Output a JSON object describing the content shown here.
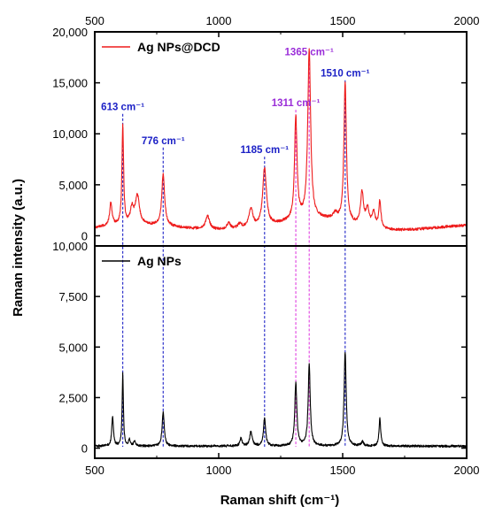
{
  "chart_data": {
    "type": "line",
    "xlabel": "Raman shift (cm⁻¹)",
    "ylabel": "Raman intensity (a.u.)",
    "xlim": [
      500,
      2000
    ],
    "x_ticks": [
      "500",
      "1000",
      "1500",
      "2000"
    ],
    "top_x_ticks": [
      "500",
      "1000",
      "1500",
      "2000"
    ],
    "grid": false,
    "panels": [
      {
        "name": "Ag NPs@DCD",
        "legend_label": "Ag NPs@DCD",
        "legend_position": "top-left",
        "color": "#ee1c1c",
        "ylim": [
          -1000,
          20000
        ],
        "y_ticks": [
          0,
          5000,
          10000,
          15000,
          20000
        ],
        "y_tick_labels": [
          "0",
          "5,000",
          "10,000",
          "15,000",
          "20,000"
        ],
        "baseline": 600,
        "peaks": [
          {
            "x": 565,
            "h": 2200,
            "w": 6
          },
          {
            "x": 613,
            "h": 9800,
            "w": 4
          },
          {
            "x": 650,
            "h": 1500,
            "w": 8
          },
          {
            "x": 672,
            "h": 2800,
            "w": 10
          },
          {
            "x": 776,
            "h": 5000,
            "w": 7
          },
          {
            "x": 955,
            "h": 1300,
            "w": 10
          },
          {
            "x": 1040,
            "h": 600,
            "w": 10
          },
          {
            "x": 1085,
            "h": 500,
            "w": 10
          },
          {
            "x": 1130,
            "h": 1900,
            "w": 10
          },
          {
            "x": 1185,
            "h": 5700,
            "w": 9
          },
          {
            "x": 1311,
            "h": 10100,
            "w": 6
          },
          {
            "x": 1365,
            "h": 16500,
            "w": 7
          },
          {
            "x": 1470,
            "h": 600,
            "w": 10
          },
          {
            "x": 1510,
            "h": 13600,
            "w": 6
          },
          {
            "x": 1578,
            "h": 3200,
            "w": 7
          },
          {
            "x": 1600,
            "h": 1700,
            "w": 8
          },
          {
            "x": 1625,
            "h": 1400,
            "w": 8
          },
          {
            "x": 1650,
            "h": 2600,
            "w": 5
          }
        ],
        "annotations": [
          {
            "label": "613 cm⁻¹",
            "x": 613,
            "y": 12300,
            "color": "#1c21c6"
          },
          {
            "label": "776 cm⁻¹",
            "x": 776,
            "y": 9000,
            "color": "#1c21c6"
          },
          {
            "label": "1185 cm⁻¹",
            "x": 1185,
            "y": 8100,
            "color": "#1c21c6"
          },
          {
            "label": "1311 cm⁻¹",
            "x": 1311,
            "y": 12700,
            "color": "#9a2dd8"
          },
          {
            "label": "1365 cm⁻¹",
            "x": 1365,
            "y": 17700,
            "color": "#9a2dd8"
          },
          {
            "label": "1510 cm⁻¹",
            "x": 1510,
            "y": 15600,
            "color": "#1c21c6"
          }
        ]
      },
      {
        "name": "Ag NPs",
        "legend_label": "Ag NPs",
        "legend_position": "top-left",
        "color": "#000000",
        "ylim": [
          -500,
          10000
        ],
        "y_ticks": [
          0,
          2500,
          5000,
          7500,
          10000
        ],
        "y_tick_labels": [
          "0",
          "2,500",
          "5,000",
          "7,500",
          "10,000"
        ],
        "baseline": 100,
        "peaks": [
          {
            "x": 572,
            "h": 1450,
            "w": 4
          },
          {
            "x": 613,
            "h": 3600,
            "w": 3
          },
          {
            "x": 640,
            "h": 300,
            "w": 4
          },
          {
            "x": 660,
            "h": 250,
            "w": 4
          },
          {
            "x": 776,
            "h": 1700,
            "w": 5
          },
          {
            "x": 1090,
            "h": 400,
            "w": 5
          },
          {
            "x": 1130,
            "h": 700,
            "w": 6
          },
          {
            "x": 1185,
            "h": 1400,
            "w": 5
          },
          {
            "x": 1311,
            "h": 3100,
            "w": 5
          },
          {
            "x": 1365,
            "h": 4000,
            "w": 5
          },
          {
            "x": 1510,
            "h": 4650,
            "w": 5
          },
          {
            "x": 1580,
            "h": 200,
            "w": 6
          },
          {
            "x": 1650,
            "h": 1350,
            "w": 4
          }
        ]
      }
    ],
    "guide_lines": [
      {
        "x": 613,
        "color": "#1c21c6"
      },
      {
        "x": 776,
        "color": "#1c21c6"
      },
      {
        "x": 1185,
        "color": "#1c21c6"
      },
      {
        "x": 1311,
        "color": "#e040e0"
      },
      {
        "x": 1365,
        "color": "#e040e0"
      },
      {
        "x": 1510,
        "color": "#1c21c6"
      }
    ]
  }
}
